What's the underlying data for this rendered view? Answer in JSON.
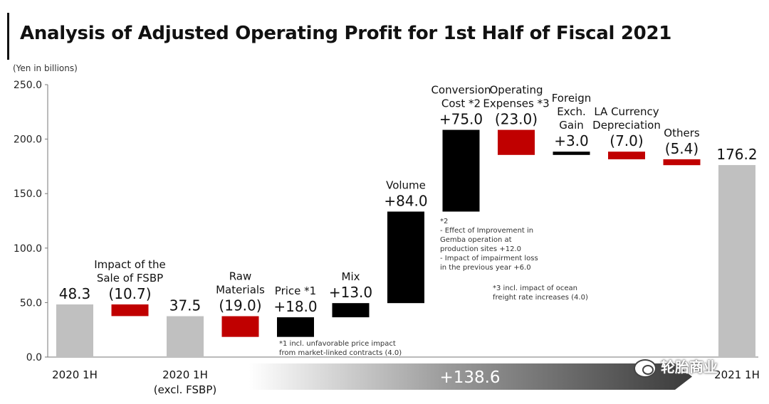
{
  "page": {
    "title": "Analysis of Adjusted Operating Profit for 1st Half of Fiscal 2021",
    "unit": "(Yen in billions)"
  },
  "watermark": "轮胎商业",
  "chart_data": {
    "type": "waterfall",
    "title": "Analysis of Adjusted Operating Profit for 1st Half of Fiscal 2021",
    "ylabel": "(Yen in billions)",
    "ylim": [
      0,
      250
    ],
    "yticks": [
      "0.0",
      "50.0",
      "100.0",
      "150.0",
      "200.0",
      "250.0"
    ],
    "grid": false,
    "colors": {
      "total": "#c0c0c0",
      "decrease": "#c00000",
      "increase": "#000000"
    },
    "steps": [
      {
        "kind": "total",
        "start": 0,
        "end": 48.3,
        "label": [],
        "value_label": "48.3",
        "axis_label": [
          "2020 1H"
        ]
      },
      {
        "kind": "decrease",
        "start": 48.3,
        "end": 37.6,
        "label": [
          "Impact of the",
          "Sale of FSBP"
        ],
        "value_label": "(10.7)",
        "axis_label": []
      },
      {
        "kind": "total",
        "start": 0,
        "end": 37.5,
        "label": [],
        "value_label": "37.5",
        "axis_label": [
          "2020 1H",
          "(excl. FSBP)"
        ]
      },
      {
        "kind": "decrease",
        "start": 37.5,
        "end": 18.5,
        "label": [
          "Raw",
          "Materials"
        ],
        "value_label": "(19.0)",
        "axis_label": []
      },
      {
        "kind": "increase",
        "start": 18.5,
        "end": 36.5,
        "label": [
          "Price *1"
        ],
        "value_label": "+18.0",
        "axis_label": []
      },
      {
        "kind": "increase",
        "start": 36.5,
        "end": 49.5,
        "label": [
          "Mix"
        ],
        "value_label": "+13.0",
        "axis_label": []
      },
      {
        "kind": "increase",
        "start": 49.5,
        "end": 133.5,
        "label": [
          "Volume"
        ],
        "value_label": "+84.0",
        "axis_label": []
      },
      {
        "kind": "increase",
        "start": 133.5,
        "end": 208.5,
        "label": [
          "Conversion",
          "Cost *2"
        ],
        "value_label": "+75.0",
        "axis_label": []
      },
      {
        "kind": "decrease",
        "start": 208.5,
        "end": 185.5,
        "label": [
          "Operating",
          "Expenses *3"
        ],
        "value_label": "(23.0)",
        "axis_label": []
      },
      {
        "kind": "increase",
        "start": 185.5,
        "end": 188.5,
        "label": [
          "Foreign",
          "Exch.",
          "Gain"
        ],
        "value_label": "+3.0",
        "axis_label": []
      },
      {
        "kind": "decrease",
        "start": 188.5,
        "end": 181.5,
        "label": [
          "LA Currency",
          "Depreciation"
        ],
        "value_label": "(7.0)",
        "axis_label": []
      },
      {
        "kind": "decrease",
        "start": 181.5,
        "end": 176.1,
        "label": [
          "Others"
        ],
        "value_label": "(5.4)",
        "axis_label": []
      },
      {
        "kind": "total",
        "start": 0,
        "end": 176.2,
        "label": [],
        "value_label": "176.2",
        "axis_label": [
          "2021 1H"
        ]
      }
    ],
    "annotations": {
      "note1": [
        "*1 incl. unfavorable price impact",
        "from market-linked contracts (4.0)"
      ],
      "note2": [
        "*2",
        " - Effect of Improvement in",
        "Gemba operation at",
        "production sites +12.0",
        " - Impact of impairment loss",
        "in the previous year +6.0"
      ],
      "note3": [
        "*3 incl. impact of ocean",
        "freight rate increases (4.0)"
      ]
    },
    "summary_arrow_label": "+138.6"
  }
}
